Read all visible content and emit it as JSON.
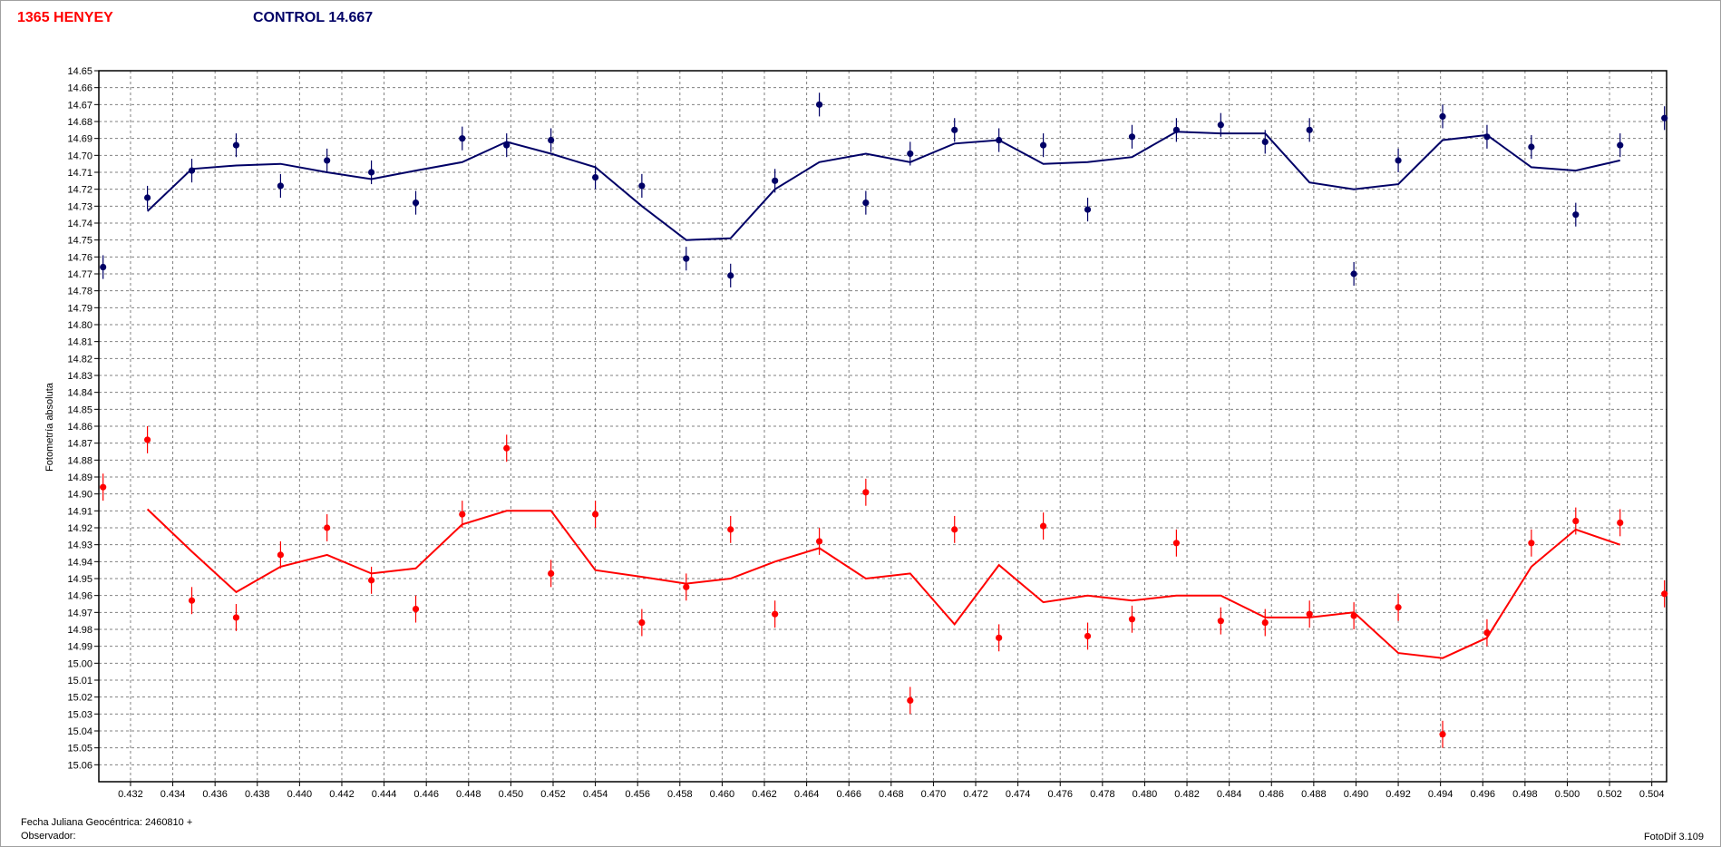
{
  "header": {
    "target_label": "1365 HENYEY",
    "control_label": "CONTROL 14.667"
  },
  "footer": {
    "jd_label": "Fecha Juliana Geocéntrica: 2460810 +",
    "observer_label": "Observador:",
    "version": "FotoDif 3.109"
  },
  "colors": {
    "target": "#ff0000",
    "control": "#000066",
    "grid": "#808080",
    "plot_border": "#000000"
  },
  "chart_data": {
    "type": "scatter",
    "ylabel": "Fotometría absoluta",
    "xlabel": "",
    "title": "",
    "xlim": [
      0.4305,
      0.5047
    ],
    "ylim": [
      15.07,
      14.65
    ],
    "y_inverted": true,
    "grid": true,
    "x_ticks": [
      0.432,
      0.434,
      0.436,
      0.438,
      0.44,
      0.442,
      0.444,
      0.446,
      0.448,
      0.45,
      0.452,
      0.454,
      0.456,
      0.458,
      0.46,
      0.462,
      0.464,
      0.466,
      0.468,
      0.47,
      0.472,
      0.474,
      0.476,
      0.478,
      0.48,
      0.482,
      0.484,
      0.486,
      0.488,
      0.49,
      0.492,
      0.494,
      0.496,
      0.498,
      0.5,
      0.502,
      0.504
    ],
    "x_tick_labels": [
      "0.432",
      "0.434",
      "0.436",
      "0.438",
      "0.440",
      "0.442",
      "0.444",
      "0.446",
      "0.448",
      "0.450",
      "0.452",
      "0.454",
      "0.456",
      "0.458",
      "0.460",
      "0.462",
      "0.464",
      "0.466",
      "0.468",
      "0.470",
      "0.472",
      "0.474",
      "0.476",
      "0.478",
      "0.480",
      "0.482",
      "0.484",
      "0.486",
      "0.488",
      "0.490",
      "0.492",
      "0.494",
      "0.496",
      "0.498",
      "0.500",
      "0.502",
      "0.504"
    ],
    "y_ticks": [
      14.65,
      14.66,
      14.67,
      14.68,
      14.69,
      14.7,
      14.71,
      14.72,
      14.73,
      14.74,
      14.75,
      14.76,
      14.77,
      14.78,
      14.79,
      14.8,
      14.81,
      14.82,
      14.83,
      14.84,
      14.85,
      14.86,
      14.87,
      14.88,
      14.89,
      14.9,
      14.91,
      14.92,
      14.93,
      14.94,
      14.95,
      14.96,
      14.97,
      14.98,
      14.99,
      15.0,
      15.01,
      15.02,
      15.03,
      15.04,
      15.05,
      15.06
    ],
    "y_tick_labels": [
      "14.65",
      "14.66",
      "14.67",
      "14.68",
      "14.69",
      "14.70",
      "14.71",
      "14.72",
      "14.73",
      "14.74",
      "14.75",
      "14.76",
      "14.77",
      "14.78",
      "14.79",
      "14.80",
      "14.81",
      "14.82",
      "14.83",
      "14.84",
      "14.85",
      "14.86",
      "14.87",
      "14.88",
      "14.89",
      "14.90",
      "14.91",
      "14.92",
      "14.93",
      "14.94",
      "14.95",
      "14.96",
      "14.97",
      "14.98",
      "14.99",
      "15.00",
      "15.01",
      "15.02",
      "15.03",
      "15.04",
      "15.05",
      "15.06"
    ],
    "series": [
      {
        "name": "CONTROL",
        "color": "#000066",
        "error": 0.007,
        "points": [
          [
            0.4307,
            14.766
          ],
          [
            0.4328,
            14.725
          ],
          [
            0.4349,
            14.709
          ],
          [
            0.437,
            14.694
          ],
          [
            0.4391,
            14.718
          ],
          [
            0.4413,
            14.703
          ],
          [
            0.4434,
            14.71
          ],
          [
            0.4455,
            14.728
          ],
          [
            0.4477,
            14.69
          ],
          [
            0.4498,
            14.694
          ],
          [
            0.4519,
            14.691
          ],
          [
            0.454,
            14.713
          ],
          [
            0.4562,
            14.718
          ],
          [
            0.4583,
            14.761
          ],
          [
            0.4604,
            14.771
          ],
          [
            0.4625,
            14.715
          ],
          [
            0.4646,
            14.67
          ],
          [
            0.4668,
            14.728
          ],
          [
            0.4689,
            14.699
          ],
          [
            0.471,
            14.685
          ],
          [
            0.4731,
            14.691
          ],
          [
            0.4752,
            14.694
          ],
          [
            0.4773,
            14.732
          ],
          [
            0.4794,
            14.689
          ],
          [
            0.4815,
            14.685
          ],
          [
            0.4836,
            14.682
          ],
          [
            0.4857,
            14.692
          ],
          [
            0.4878,
            14.685
          ],
          [
            0.4899,
            14.77
          ],
          [
            0.492,
            14.703
          ],
          [
            0.4941,
            14.677
          ],
          [
            0.4962,
            14.689
          ],
          [
            0.4983,
            14.695
          ],
          [
            0.5004,
            14.735
          ],
          [
            0.5025,
            14.694
          ],
          [
            0.5046,
            14.678
          ]
        ],
        "trend": [
          [
            0.4328,
            14.733
          ],
          [
            0.4349,
            14.708
          ],
          [
            0.437,
            14.706
          ],
          [
            0.4391,
            14.705
          ],
          [
            0.4413,
            14.71
          ],
          [
            0.4434,
            14.714
          ],
          [
            0.4455,
            14.709
          ],
          [
            0.4477,
            14.704
          ],
          [
            0.4498,
            14.692
          ],
          [
            0.4519,
            14.699
          ],
          [
            0.454,
            14.707
          ],
          [
            0.4562,
            14.73
          ],
          [
            0.4583,
            14.75
          ],
          [
            0.4604,
            14.749
          ],
          [
            0.4625,
            14.72
          ],
          [
            0.4646,
            14.704
          ],
          [
            0.4668,
            14.699
          ],
          [
            0.4689,
            14.704
          ],
          [
            0.471,
            14.693
          ],
          [
            0.4731,
            14.691
          ],
          [
            0.4752,
            14.705
          ],
          [
            0.4773,
            14.704
          ],
          [
            0.4794,
            14.701
          ],
          [
            0.4815,
            14.686
          ],
          [
            0.4836,
            14.687
          ],
          [
            0.4857,
            14.687
          ],
          [
            0.4878,
            14.716
          ],
          [
            0.4899,
            14.72
          ],
          [
            0.492,
            14.717
          ],
          [
            0.4941,
            14.691
          ],
          [
            0.4962,
            14.688
          ],
          [
            0.4983,
            14.707
          ],
          [
            0.5004,
            14.709
          ],
          [
            0.5025,
            14.703
          ]
        ]
      },
      {
        "name": "1365 HENYEY",
        "color": "#ff0000",
        "error": 0.008,
        "points": [
          [
            0.4307,
            14.896
          ],
          [
            0.4328,
            14.868
          ],
          [
            0.4349,
            14.963
          ],
          [
            0.437,
            14.973
          ],
          [
            0.4391,
            14.936
          ],
          [
            0.4413,
            14.92
          ],
          [
            0.4434,
            14.951
          ],
          [
            0.4455,
            14.968
          ],
          [
            0.4477,
            14.912
          ],
          [
            0.4498,
            14.873
          ],
          [
            0.4519,
            14.947
          ],
          [
            0.454,
            14.912
          ],
          [
            0.4562,
            14.976
          ],
          [
            0.4583,
            14.955
          ],
          [
            0.4604,
            14.921
          ],
          [
            0.4625,
            14.971
          ],
          [
            0.4646,
            14.928
          ],
          [
            0.4668,
            14.899
          ],
          [
            0.4689,
            15.022
          ],
          [
            0.471,
            14.921
          ],
          [
            0.4731,
            14.985
          ],
          [
            0.4752,
            14.919
          ],
          [
            0.4773,
            14.984
          ],
          [
            0.4794,
            14.974
          ],
          [
            0.4815,
            14.929
          ],
          [
            0.4836,
            14.975
          ],
          [
            0.4857,
            14.976
          ],
          [
            0.4878,
            14.971
          ],
          [
            0.4899,
            14.972
          ],
          [
            0.492,
            14.967
          ],
          [
            0.4941,
            15.042
          ],
          [
            0.4962,
            14.982
          ],
          [
            0.4983,
            14.929
          ],
          [
            0.5004,
            14.916
          ],
          [
            0.5025,
            14.917
          ],
          [
            0.5046,
            14.959
          ]
        ],
        "trend": [
          [
            0.4328,
            14.909
          ],
          [
            0.4349,
            14.934
          ],
          [
            0.437,
            14.958
          ],
          [
            0.4391,
            14.943
          ],
          [
            0.4413,
            14.936
          ],
          [
            0.4434,
            14.947
          ],
          [
            0.4455,
            14.944
          ],
          [
            0.4477,
            14.918
          ],
          [
            0.4498,
            14.91
          ],
          [
            0.4519,
            14.91
          ],
          [
            0.454,
            14.945
          ],
          [
            0.4562,
            14.949
          ],
          [
            0.4583,
            14.953
          ],
          [
            0.4604,
            14.95
          ],
          [
            0.4625,
            14.94
          ],
          [
            0.4646,
            14.932
          ],
          [
            0.4668,
            14.95
          ],
          [
            0.4689,
            14.947
          ],
          [
            0.471,
            14.977
          ],
          [
            0.4731,
            14.942
          ],
          [
            0.4752,
            14.964
          ],
          [
            0.4773,
            14.96
          ],
          [
            0.4794,
            14.963
          ],
          [
            0.4815,
            14.96
          ],
          [
            0.4836,
            14.96
          ],
          [
            0.4857,
            14.973
          ],
          [
            0.4878,
            14.973
          ],
          [
            0.4899,
            14.97
          ],
          [
            0.492,
            14.994
          ],
          [
            0.4941,
            14.997
          ],
          [
            0.4962,
            14.985
          ],
          [
            0.4983,
            14.943
          ],
          [
            0.5004,
            14.921
          ],
          [
            0.5025,
            14.93
          ]
        ]
      }
    ]
  }
}
